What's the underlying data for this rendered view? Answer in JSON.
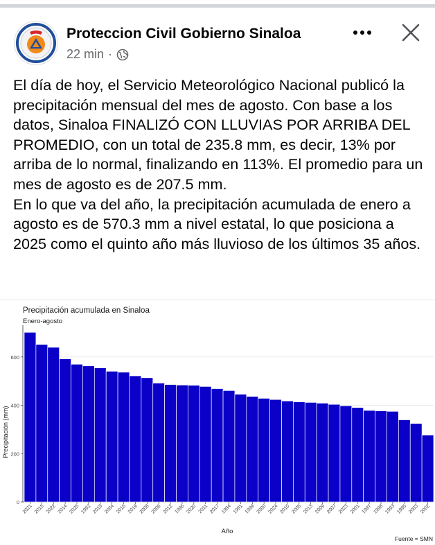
{
  "post": {
    "page_name": "Proteccion Civil Gobierno Sinaloa",
    "time": "22 min",
    "separator": "·",
    "paragraph1": "El día de hoy, el Servicio Meteorológico Nacional publicó la precipitación mensual del mes de agosto. Con base a los datos, Sinaloa FINALIZÓ CON LLUVIAS POR ARRIBA DEL PROMEDIO, con un total de 235.8 mm, es decir, 13% por arriba de lo normal, finalizando en 113%. El promedio para un mes de agosto es de 207.5 mm.",
    "paragraph2": "En lo que va del año, la precipitación acumulada de enero a agosto es de 570.3 mm a nivel estatal, lo que posiciona a 2025 como el quinto año más lluvioso de los últimos 35 años."
  },
  "icons": {
    "avatar": "civil-protection-logo-icon",
    "audience": "globe-icon",
    "more": "more-options-icon",
    "close": "close-icon"
  },
  "colors": {
    "bar": "#0a00c8",
    "meta": "#65676b",
    "text": "#050505"
  },
  "chart_data": {
    "type": "bar",
    "title": "Precipitación acumulada en Sinaloa",
    "subtitle": "Enero-agosto",
    "xlabel": "Año",
    "ylabel": "Precipitación (mm)",
    "source": "Fuente = SMN",
    "ylim": [
      0,
      720
    ],
    "yticks": [
      0,
      200,
      400,
      600
    ],
    "categories": [
      "2021",
      "2015",
      "2022",
      "2014",
      "2025",
      "1992",
      "2018",
      "2004",
      "2016",
      "2019",
      "2008",
      "2006",
      "2012",
      "1996",
      "2020",
      "2011",
      "2017",
      "1994",
      "1991",
      "1999",
      "2000",
      "2024",
      "2010",
      "2005",
      "2013",
      "2009",
      "2007",
      "2023",
      "2001",
      "1997",
      "1998",
      "1993",
      "1995",
      "2003",
      "2002"
    ],
    "values": [
      702,
      652,
      640,
      592,
      570,
      563,
      555,
      541,
      537,
      522,
      514,
      492,
      486,
      484,
      483,
      478,
      469,
      461,
      446,
      437,
      429,
      424,
      418,
      414,
      412,
      409,
      404,
      398,
      391,
      379,
      377,
      375,
      340,
      325,
      277
    ]
  }
}
